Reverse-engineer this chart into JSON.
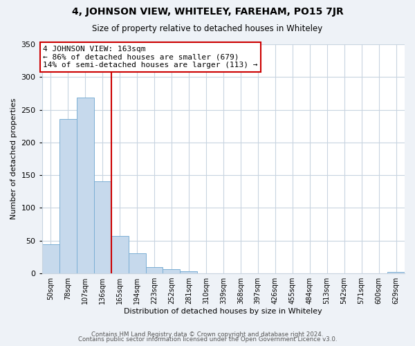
{
  "title": "4, JOHNSON VIEW, WHITELEY, FAREHAM, PO15 7JR",
  "subtitle": "Size of property relative to detached houses in Whiteley",
  "xlabel": "Distribution of detached houses by size in Whiteley",
  "ylabel": "Number of detached properties",
  "bar_labels": [
    "50sqm",
    "78sqm",
    "107sqm",
    "136sqm",
    "165sqm",
    "194sqm",
    "223sqm",
    "252sqm",
    "281sqm",
    "310sqm",
    "339sqm",
    "368sqm",
    "397sqm",
    "426sqm",
    "455sqm",
    "484sqm",
    "513sqm",
    "542sqm",
    "571sqm",
    "600sqm",
    "629sqm"
  ],
  "bar_values": [
    45,
    236,
    269,
    141,
    57,
    31,
    10,
    6,
    3,
    0,
    0,
    0,
    0,
    0,
    0,
    0,
    0,
    0,
    0,
    0,
    2
  ],
  "bar_color": "#c6d9ec",
  "bar_edge_color": "#7bafd4",
  "vline_x_index": 4,
  "vline_color": "#cc0000",
  "annotation_title": "4 JOHNSON VIEW: 163sqm",
  "annotation_line1": "← 86% of detached houses are smaller (679)",
  "annotation_line2": "14% of semi-detached houses are larger (113) →",
  "annotation_box_color": "#ffffff",
  "annotation_box_edge": "#cc0000",
  "ylim": [
    0,
    350
  ],
  "yticks": [
    0,
    50,
    100,
    150,
    200,
    250,
    300,
    350
  ],
  "footer1": "Contains HM Land Registry data © Crown copyright and database right 2024.",
  "footer2": "Contains public sector information licensed under the Open Government Licence v3.0.",
  "bg_color": "#eef2f7",
  "plot_bg_color": "#ffffff",
  "grid_color": "#c8d4e0"
}
